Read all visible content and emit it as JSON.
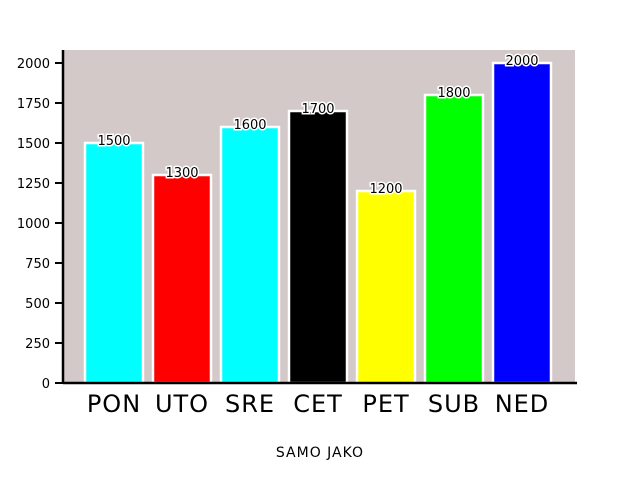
{
  "chart_data": {
    "type": "bar",
    "categories": [
      "PON",
      "UTO",
      "SRE",
      "CET",
      "PET",
      "SUB",
      "NED"
    ],
    "values": [
      1500,
      1300,
      1600,
      1700,
      1200,
      1800,
      2000
    ],
    "bar_labels": [
      "1500",
      "1300",
      "1600",
      "1700",
      "1200",
      "1800",
      "2000"
    ],
    "colors": [
      "#00ffff",
      "#ff0000",
      "#00ffff",
      "#000000",
      "#ffff00",
      "#00ff00",
      "#0000ff"
    ],
    "yticks": [
      0,
      250,
      500,
      750,
      1000,
      1250,
      1500,
      1750,
      2000
    ],
    "ytick_labels": [
      "0",
      "250",
      "500",
      "750",
      "1000",
      "1250",
      "1500",
      "1750",
      "2000"
    ],
    "ylim": [
      0,
      2100
    ],
    "xlabel": "SAMO JAKO",
    "title": "",
    "ylabel": "",
    "grid": false,
    "background_color": "#d3c9c9"
  }
}
